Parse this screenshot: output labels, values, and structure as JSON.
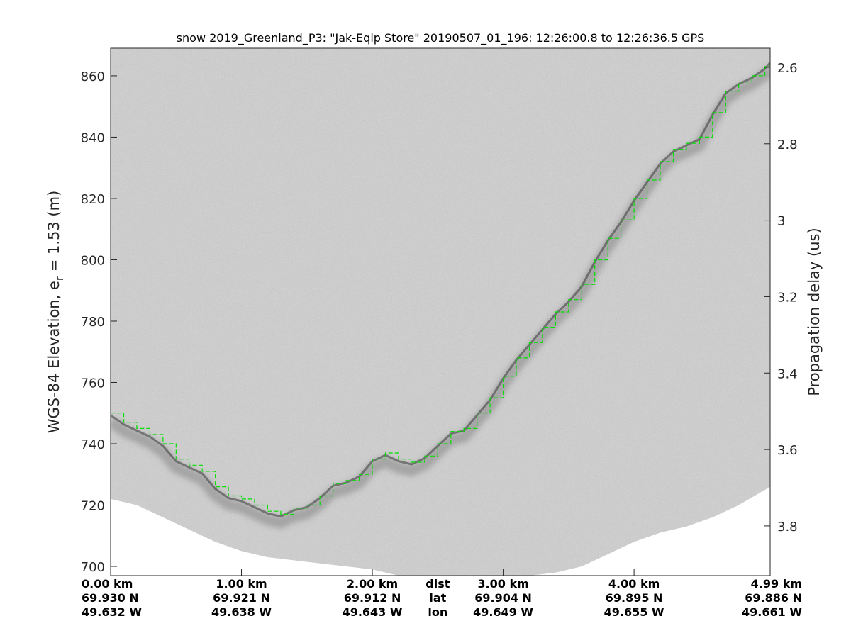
{
  "chart_data": {
    "type": "image",
    "title": "snow 2019_Greenland_P3: \"Jak-Eqip Store\"  20190507_01_196: 12:26:00.8 to 12:26:36.5 GPS",
    "ylabel_left": "WGS-84 Elevation, e",
    "ylabel_left_sub": "r",
    "ylabel_left_tail": " = 1.53 (m)",
    "ylabel_right": "Propagation delay (us)",
    "ylim_left": [
      697,
      869
    ],
    "ylim_right": [
      3.93,
      2.55
    ],
    "left_ticks": [
      {
        "value": 860,
        "label": "860"
      },
      {
        "value": 840,
        "label": "840"
      },
      {
        "value": 820,
        "label": "820"
      },
      {
        "value": 800,
        "label": "800"
      },
      {
        "value": 780,
        "label": "780"
      },
      {
        "value": 760,
        "label": "760"
      },
      {
        "value": 740,
        "label": "740"
      },
      {
        "value": 720,
        "label": "720"
      },
      {
        "value": 700,
        "label": "700"
      }
    ],
    "right_ticks": [
      {
        "value": 2.6,
        "label": "2.6"
      },
      {
        "value": 2.8,
        "label": "2.8"
      },
      {
        "value": 3.0,
        "label": "3"
      },
      {
        "value": 3.2,
        "label": "3.2"
      },
      {
        "value": 3.4,
        "label": "3.4"
      },
      {
        "value": 3.6,
        "label": "3.6"
      },
      {
        "value": 3.8,
        "label": "3.8"
      }
    ],
    "xlim_km": [
      0,
      5.04
    ],
    "bottom_columns": [
      {
        "km": 0.0,
        "dist": "0.00 km",
        "lat": "69.930 N",
        "lon": "49.632 W",
        "anchor": "start"
      },
      {
        "km": 1.0,
        "dist": "1.00 km",
        "lat": "69.921 N",
        "lon": "49.638 W",
        "anchor": "middle"
      },
      {
        "km": 2.0,
        "dist": "2.00 km",
        "lat": "69.912 N",
        "lon": "49.643 W",
        "anchor": "middle"
      },
      {
        "km": 3.0,
        "dist": "3.00 km",
        "lat": "69.904 N",
        "lon": "49.649 W",
        "anchor": "middle"
      },
      {
        "km": 4.0,
        "dist": "4.00 km",
        "lat": "69.895 N",
        "lon": "49.655 W",
        "anchor": "middle"
      },
      {
        "km": 5.04,
        "dist": "4.99 km",
        "lat": "69.886 N",
        "lon": "49.661 W",
        "anchor": "end"
      }
    ],
    "legend_col": {
      "km": 2.5,
      "dist": "dist",
      "lat": "lat",
      "lon": "lon"
    },
    "surface_km": [
      0.0,
      0.1,
      0.2,
      0.3,
      0.4,
      0.5,
      0.6,
      0.7,
      0.8,
      0.9,
      1.0,
      1.1,
      1.2,
      1.3,
      1.4,
      1.5,
      1.6,
      1.7,
      1.8,
      1.9,
      2.0,
      2.1,
      2.2,
      2.3,
      2.4,
      2.5,
      2.6,
      2.7,
      2.8,
      2.9,
      3.0,
      3.1,
      3.2,
      3.3,
      3.4,
      3.5,
      3.6,
      3.7,
      3.8,
      3.9,
      4.0,
      4.1,
      4.2,
      4.3,
      4.4,
      4.5,
      4.6,
      4.7,
      4.8,
      4.9,
      5.0,
      5.04
    ],
    "surface_elev": [
      750,
      747,
      745,
      743,
      740,
      735,
      733,
      731,
      726,
      723,
      722,
      720,
      718,
      717,
      719,
      720,
      723,
      727,
      728,
      730,
      735,
      737,
      735,
      734,
      736,
      740,
      744,
      745,
      750,
      755,
      762,
      768,
      773,
      778,
      783,
      787,
      792,
      800,
      807,
      813,
      820,
      826,
      832,
      836,
      838,
      840,
      848,
      855,
      858,
      860,
      863,
      865
    ],
    "bottom_km": [
      0.0,
      0.2,
      0.4,
      0.6,
      0.8,
      1.0,
      1.2,
      1.4,
      1.6,
      1.8,
      2.0,
      2.2,
      2.4,
      2.6,
      2.8,
      3.0,
      3.2,
      3.4,
      3.6,
      3.8,
      4.0,
      4.2,
      4.4,
      4.6,
      4.8,
      5.04
    ],
    "bottom_elev": [
      722,
      720,
      716,
      712,
      708,
      705,
      703,
      702,
      701,
      700,
      699,
      697,
      697,
      697,
      697,
      697,
      697,
      698,
      700,
      704,
      708,
      711,
      713,
      716,
      720,
      726
    ],
    "colors": {
      "background": "#ffffff",
      "radargram": "#cfcfcf",
      "layer_dark": "#4a4a4a",
      "surface_track": "#00e000",
      "axis": "#262626"
    }
  }
}
